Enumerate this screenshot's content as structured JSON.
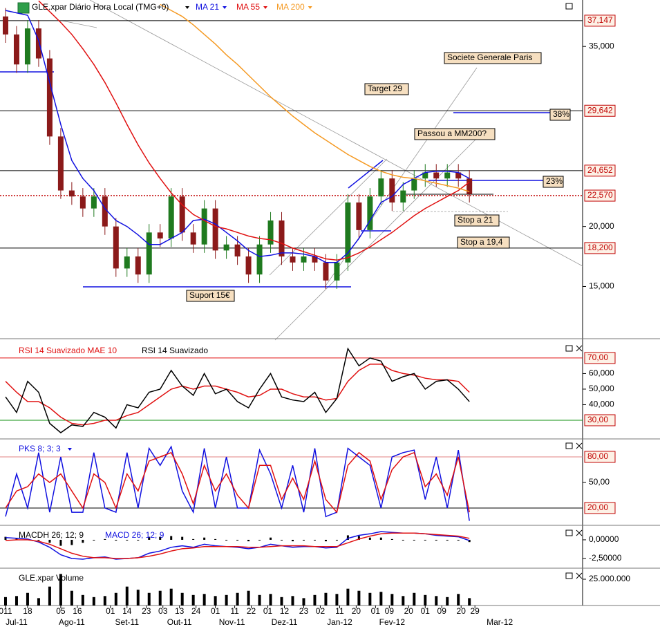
{
  "chart_data": [
    {
      "type": "candlestick",
      "title": "GLE.xpar Diário Hora Local (TMG+0)",
      "x": [
        2,
        6,
        10,
        14,
        18,
        22,
        26,
        30,
        34,
        38,
        42,
        46,
        50,
        54,
        58,
        62,
        66,
        70,
        74,
        78,
        82,
        86,
        90,
        94,
        98,
        102,
        106,
        110,
        114,
        118,
        122,
        126,
        130,
        134,
        138,
        142,
        146,
        150,
        154,
        158,
        162,
        166,
        170
      ],
      "xlim": [
        0,
        211
      ],
      "xticks": [
        {
          "value": 2,
          "label": "011"
        },
        {
          "value": 10,
          "label": "18"
        },
        {
          "value": 22,
          "label": "05"
        },
        {
          "value": 28,
          "label": "16"
        },
        {
          "value": 40,
          "label": "01"
        },
        {
          "value": 46,
          "label": "14"
        },
        {
          "value": 53,
          "label": "23"
        },
        {
          "value": 59,
          "label": "03"
        },
        {
          "value": 65,
          "label": "13"
        },
        {
          "value": 71,
          "label": "24"
        },
        {
          "value": 78,
          "label": "01"
        },
        {
          "value": 85,
          "label": "11"
        },
        {
          "value": 91,
          "label": "22"
        },
        {
          "value": 97,
          "label": "01"
        },
        {
          "value": 103,
          "label": "12"
        },
        {
          "value": 110,
          "label": "23"
        },
        {
          "value": 116,
          "label": "02"
        },
        {
          "value": 123,
          "label": "11"
        },
        {
          "value": 129,
          "label": "20"
        },
        {
          "value": 136,
          "label": "01"
        },
        {
          "value": 141,
          "label": "09"
        },
        {
          "value": 148,
          "label": "20"
        },
        {
          "value": 154,
          "label": "01"
        },
        {
          "value": 160,
          "label": "09"
        },
        {
          "value": 167,
          "label": "20"
        },
        {
          "value": 172,
          "label": "29"
        }
      ],
      "months": [
        {
          "value": 6,
          "label": "Jul-11"
        },
        {
          "value": 26,
          "label": "Ago-11"
        },
        {
          "value": 46,
          "label": "Set-11"
        },
        {
          "value": 65,
          "label": "Out-11"
        },
        {
          "value": 84,
          "label": "Nov-11"
        },
        {
          "value": 103,
          "label": "Dez-11"
        },
        {
          "value": 123,
          "label": "Jan-12"
        },
        {
          "value": 142,
          "label": "Fev-12"
        },
        {
          "value": 181,
          "label": "Mar-12"
        }
      ],
      "open": [
        37500,
        36000,
        33500,
        36500,
        34000,
        27500,
        23000,
        22500,
        21500,
        22500,
        20000,
        16500,
        17500,
        16000,
        19500,
        19000,
        22500,
        19500,
        18500,
        21500,
        18000,
        18500,
        17500,
        16000,
        18500,
        20500,
        17500,
        17000,
        17500,
        17000,
        15500,
        17000,
        22000,
        19700,
        22500,
        24000,
        22000,
        23000,
        24000,
        24500,
        24000,
        24500,
        24000
      ],
      "high": [
        38200,
        36700,
        37200,
        37200,
        34700,
        28200,
        23700,
        23200,
        23200,
        23200,
        20700,
        18200,
        18200,
        20200,
        20200,
        23200,
        23200,
        20200,
        22200,
        22200,
        19200,
        19200,
        18200,
        19200,
        21200,
        21200,
        18200,
        18200,
        18200,
        17700,
        17700,
        22700,
        22700,
        23200,
        24700,
        24700,
        23700,
        24700,
        25200,
        25200,
        25200,
        25200,
        24700
      ],
      "low": [
        35300,
        32800,
        32800,
        33300,
        26800,
        22300,
        21800,
        20800,
        20800,
        19300,
        15800,
        15800,
        15300,
        15300,
        18300,
        18300,
        18800,
        17800,
        17800,
        17300,
        17300,
        16800,
        15300,
        15300,
        17800,
        16800,
        16300,
        16300,
        16300,
        14800,
        14800,
        16300,
        19000,
        19000,
        21800,
        21300,
        21300,
        22300,
        23300,
        23300,
        23300,
        23300,
        22000
      ],
      "close": [
        36000,
        33500,
        36500,
        34000,
        27500,
        23000,
        22500,
        21500,
        22500,
        20000,
        16500,
        17500,
        16000,
        19500,
        19000,
        22500,
        19500,
        18500,
        21500,
        18000,
        18500,
        17500,
        16000,
        18500,
        20500,
        17500,
        17000,
        17500,
        17000,
        15500,
        17000,
        22000,
        19700,
        22500,
        24000,
        22000,
        23000,
        24000,
        24500,
        24000,
        24500,
        24000,
        22700
      ],
      "up_color": "#1f7a1f",
      "down_color": "#8b1a1a",
      "series": [
        {
          "name": "MA 21",
          "color": "#1010e0",
          "values": [
            38000,
            37800,
            37600,
            35500,
            32000,
            28500,
            25500,
            24000,
            23000,
            21500,
            20500,
            20000,
            19300,
            18500,
            18500,
            19000,
            19500,
            20500,
            20600,
            20200,
            19500,
            18800,
            18000,
            17500,
            17600,
            17800,
            17800,
            17700,
            17500,
            17000,
            17000,
            17800,
            19000,
            20500,
            22000,
            22500,
            23500,
            24000,
            24500,
            24600,
            24600,
            24500,
            24000
          ]
        },
        {
          "name": "MA 55",
          "color": "#e01010",
          "values": [
            null,
            null,
            null,
            38800,
            37900,
            37000,
            36000,
            34800,
            33500,
            32000,
            30300,
            28500,
            26800,
            25300,
            24000,
            22800,
            21800,
            21000,
            20500,
            20000,
            19800,
            19500,
            19200,
            19000,
            18900,
            18600,
            18200,
            17900,
            17600,
            17300,
            17200,
            17400,
            17800,
            18300,
            18900,
            19500,
            20200,
            20900,
            21500,
            22000,
            22500,
            23000,
            23700
          ]
        },
        {
          "name": "MA 200",
          "color": "#f59a23",
          "values": [
            null,
            null,
            null,
            null,
            null,
            null,
            null,
            null,
            null,
            null,
            null,
            null,
            null,
            null,
            38500,
            38000,
            37500,
            36800,
            36000,
            35200,
            34300,
            33500,
            32600,
            31700,
            30800,
            30000,
            29200,
            28500,
            27800,
            27200,
            26600,
            26000,
            25500,
            25000,
            24600,
            24300,
            24100,
            24000,
            23800,
            23600,
            23400,
            23200,
            22900
          ]
        }
      ],
      "ylim": [
        10650,
        38870
      ],
      "yticks": [
        {
          "value": 35000,
          "label": "35,000"
        },
        {
          "value": 20000,
          "label": "20,000"
        },
        {
          "value": 15000,
          "label": "15,000"
        }
      ],
      "levels": [
        {
          "value": 37147,
          "label": "37,147",
          "color": "#000000"
        },
        {
          "value": 29642,
          "label": "29,642",
          "color": "#000000"
        },
        {
          "value": 24652,
          "label": "24,652",
          "color": "#000000"
        },
        {
          "value": 22570,
          "label": "22,570",
          "color": "#c00000",
          "dashed": true
        },
        {
          "value": 18200,
          "label": "18,200",
          "color": "#000000"
        }
      ],
      "annotations": [
        "Societe Generale Paris",
        "Target 29",
        "Passou a MM200?",
        "38%",
        "23%",
        "Stop a 21",
        "Stop a 19,4",
        "Suport 15€"
      ]
    },
    {
      "type": "line",
      "series": [
        {
          "name": "RSI 14 Suavizado MAE 10",
          "color": "#e01010",
          "values": [
            55,
            48,
            42,
            42,
            38,
            32,
            28,
            27,
            28,
            30,
            30,
            33,
            35,
            40,
            45,
            50,
            52,
            50,
            52,
            52,
            50,
            48,
            45,
            46,
            50,
            50,
            47,
            45,
            45,
            43,
            44,
            55,
            62,
            66,
            66,
            62,
            60,
            59,
            57,
            56,
            56,
            55,
            48
          ]
        },
        {
          "name": "RSI 14 Suavizado",
          "color": "#000000",
          "values": [
            45,
            35,
            55,
            48,
            28,
            22,
            27,
            26,
            35,
            32,
            25,
            40,
            38,
            48,
            50,
            62,
            52,
            46,
            60,
            47,
            50,
            42,
            38,
            50,
            60,
            45,
            43,
            42,
            48,
            35,
            44,
            76,
            65,
            70,
            68,
            55,
            58,
            60,
            50,
            55,
            56,
            50,
            42
          ]
        }
      ],
      "ylim": [
        18,
        79.3
      ],
      "yticks": [
        {
          "value": 60,
          "label": "60,000"
        },
        {
          "value": 50,
          "label": "50,000"
        },
        {
          "value": 40,
          "label": "40,000"
        }
      ],
      "levels": [
        {
          "value": 70,
          "label": "70,00",
          "color": "#e01010"
        },
        {
          "value": 30,
          "label": "30,00",
          "color": "#109010"
        }
      ]
    },
    {
      "type": "line",
      "title": "PKS 8; 3; 3",
      "series": [
        {
          "color": "#1010e0",
          "values": [
            10,
            60,
            20,
            85,
            15,
            80,
            15,
            15,
            85,
            20,
            15,
            85,
            20,
            90,
            70,
            92,
            40,
            15,
            90,
            20,
            80,
            20,
            20,
            88,
            60,
            20,
            70,
            15,
            90,
            10,
            15,
            90,
            80,
            70,
            20,
            80,
            85,
            88,
            30,
            80,
            20,
            88,
            5
          ]
        },
        {
          "color": "#e01010",
          "values": [
            20,
            40,
            45,
            60,
            50,
            60,
            40,
            20,
            60,
            50,
            20,
            60,
            40,
            75,
            80,
            85,
            60,
            25,
            70,
            40,
            60,
            35,
            20,
            70,
            70,
            30,
            55,
            30,
            75,
            30,
            15,
            70,
            85,
            75,
            30,
            65,
            80,
            85,
            45,
            60,
            35,
            80,
            15
          ]
        }
      ],
      "ylim": [
        -0.3,
        97.8
      ],
      "yticks": [
        {
          "value": 50,
          "label": "50,00"
        }
      ],
      "levels": [
        {
          "value": 80,
          "label": "80,00",
          "color": "#e08080"
        },
        {
          "value": 20,
          "label": "20,00",
          "color": "#000000"
        }
      ]
    },
    {
      "type": "line",
      "series": [
        {
          "name": "MACDH 26; 12; 9",
          "color": "#000000",
          "style": "histogram",
          "values": [
            0.4,
            0.2,
            0.1,
            -0.1,
            -0.4,
            -0.8,
            -0.7,
            -0.4,
            0,
            0.1,
            -0.1,
            0,
            0,
            0.4,
            0.4,
            0.5,
            0.4,
            0.1,
            0.3,
            0.1,
            0,
            -0.1,
            -0.2,
            0,
            0.3,
            0,
            -0.2,
            -0.1,
            0,
            -0.2,
            -0.1,
            0.6,
            0.5,
            0.3,
            0.3,
            0.1,
            0,
            0,
            0,
            -0.1,
            -0.1,
            -0.1,
            -0.3
          ]
        },
        {
          "name": "MACD 26; 12; 9",
          "color": "#1010e0",
          "values": [
            0.3,
            0.2,
            0.1,
            -0.3,
            -1.0,
            -2.0,
            -2.5,
            -2.6,
            -2.4,
            -2.3,
            -2.6,
            -2.5,
            -2.4,
            -1.8,
            -1.5,
            -1.0,
            -0.8,
            -1.0,
            -0.6,
            -0.8,
            -0.9,
            -1.0,
            -1.2,
            -1.0,
            -0.6,
            -0.8,
            -1.0,
            -0.9,
            -0.9,
            -1.1,
            -1.0,
            0.2,
            0.6,
            0.8,
            1.1,
            1.0,
            0.9,
            0.9,
            0.8,
            0.6,
            0.5,
            0.4,
            -0.1
          ]
        },
        {
          "color": "#e01010",
          "values": [
            -0.1,
            0,
            0,
            -0.2,
            -0.6,
            -1.2,
            -1.8,
            -2.2,
            -2.4,
            -2.4,
            -2.5,
            -2.5,
            -2.4,
            -2.2,
            -1.9,
            -1.5,
            -1.2,
            -1.1,
            -0.9,
            -0.9,
            -0.9,
            -0.9,
            -1.0,
            -1.0,
            -0.9,
            -0.8,
            -0.8,
            -0.8,
            -0.9,
            -0.9,
            -0.9,
            -0.4,
            0.1,
            0.5,
            0.8,
            0.9,
            0.9,
            0.9,
            0.8,
            0.7,
            0.6,
            0.5,
            0.2
          ]
        }
      ],
      "ylim": [
        -3.8,
        1.57
      ],
      "yticks": [
        {
          "value": 0,
          "label": "0,00000"
        },
        {
          "value": -2.5,
          "label": "-2,50000"
        }
      ]
    },
    {
      "type": "bar",
      "title": "GLE.xpar Volume",
      "color": "#000000",
      "values": [
        8000000,
        9000000,
        12000000,
        7000000,
        18000000,
        30000000,
        14000000,
        10000000,
        8000000,
        9000000,
        12000000,
        18000000,
        15000000,
        12000000,
        14000000,
        16000000,
        12000000,
        10000000,
        11000000,
        9000000,
        10000000,
        12000000,
        14000000,
        10000000,
        11000000,
        8000000,
        9000000,
        7000000,
        10000000,
        12000000,
        11000000,
        16000000,
        14000000,
        12000000,
        13000000,
        11000000,
        9000000,
        12000000,
        10000000,
        9000000,
        8000000,
        11000000,
        7000000
      ],
      "ylim": [
        0,
        32900000
      ],
      "yticks": [
        {
          "value": 25000000,
          "label": "25.000.000"
        }
      ]
    }
  ]
}
